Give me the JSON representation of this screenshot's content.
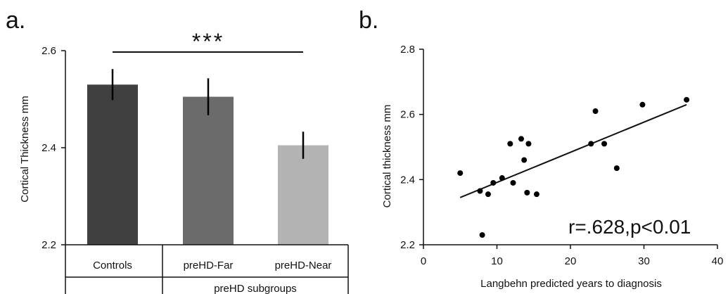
{
  "chart_data": [
    {
      "panel": "a.",
      "type": "bar",
      "categories": [
        "Controls",
        "preHD-Far",
        "preHD-Near"
      ],
      "values": [
        2.53,
        2.505,
        2.405
      ],
      "errors": [
        0.032,
        0.038,
        0.028
      ],
      "group_label": "preHD subgroups",
      "ylabel": "Cortical Thickness  mm",
      "ylim": [
        2.2,
        2.6
      ],
      "yticks": [
        "2.2",
        "2.4",
        "2.6"
      ],
      "significance": "***",
      "colors": [
        "#404040",
        "#6b6b6b",
        "#b3b3b3"
      ]
    },
    {
      "panel": "b.",
      "type": "scatter",
      "points": [
        {
          "x": 5,
          "y": 2.42
        },
        {
          "x": 7.7,
          "y": 2.365
        },
        {
          "x": 8,
          "y": 2.23
        },
        {
          "x": 8.8,
          "y": 2.355
        },
        {
          "x": 9.5,
          "y": 2.39
        },
        {
          "x": 10.7,
          "y": 2.405
        },
        {
          "x": 11.8,
          "y": 2.51
        },
        {
          "x": 12.2,
          "y": 2.39
        },
        {
          "x": 13.3,
          "y": 2.525
        },
        {
          "x": 13.7,
          "y": 2.46
        },
        {
          "x": 14.1,
          "y": 2.36
        },
        {
          "x": 14.3,
          "y": 2.51
        },
        {
          "x": 15.4,
          "y": 2.355
        },
        {
          "x": 22.8,
          "y": 2.51
        },
        {
          "x": 23.4,
          "y": 2.61
        },
        {
          "x": 24.6,
          "y": 2.51
        },
        {
          "x": 26.3,
          "y": 2.435
        },
        {
          "x": 29.8,
          "y": 2.63
        },
        {
          "x": 35.8,
          "y": 2.645
        }
      ],
      "fit_line": {
        "x": [
          5,
          35.8
        ],
        "y": [
          2.345,
          2.63
        ]
      },
      "xlabel": "Langbehn predicted years to diagnosis",
      "ylabel": "Cortical thickness mm",
      "xlim": [
        0,
        40
      ],
      "ylim": [
        2.2,
        2.8
      ],
      "xticks": [
        "0",
        "10",
        "20",
        "30",
        "40"
      ],
      "yticks": [
        "2.2",
        "2.4",
        "2.6",
        "2.8"
      ],
      "annotation": "r=.628,p<0.01"
    }
  ]
}
